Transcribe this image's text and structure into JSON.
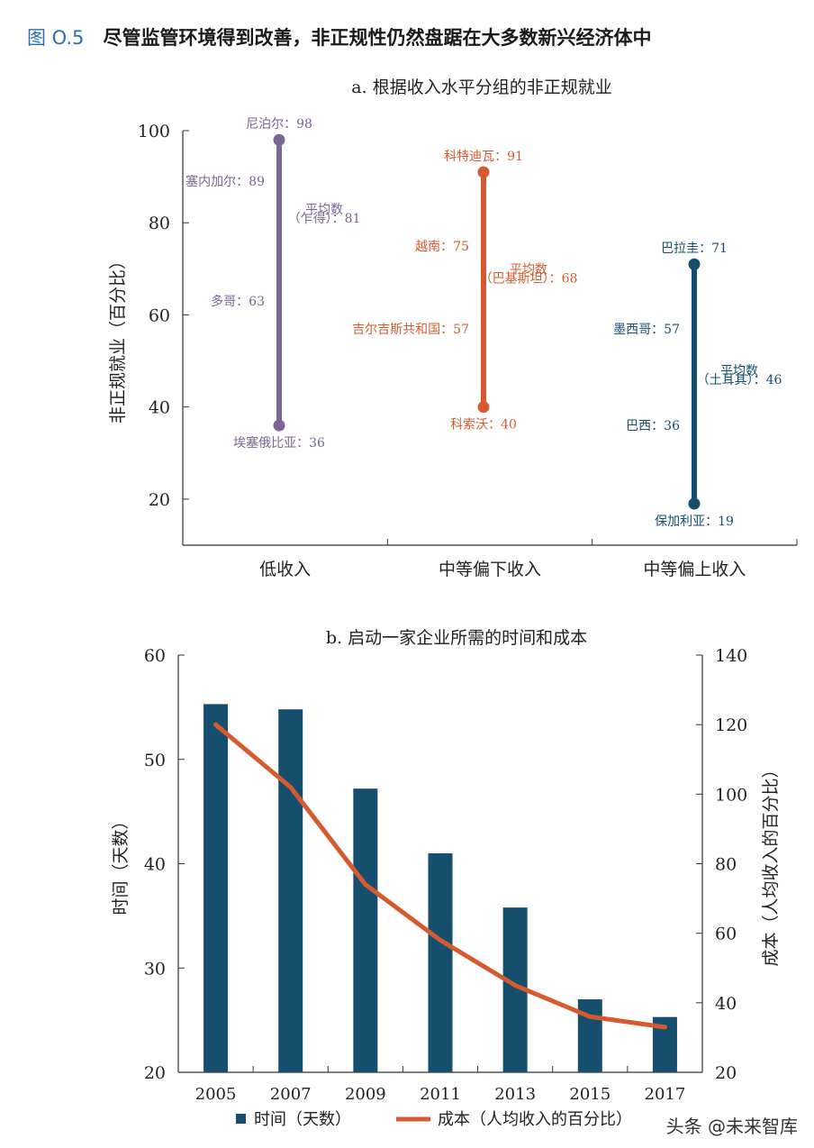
{
  "header": {
    "figure_number": "图 O.5",
    "figure_title": "尽管监管环境得到改善，非正规性仍然盘踞在大多数新兴经济体中"
  },
  "colors": {
    "purple": "#7b6595",
    "orange": "#d65a30",
    "teal": "#164f6e",
    "axis": "#333333"
  },
  "chart_data": [
    {
      "type": "range",
      "title": "a. 根据收入水平分组的非正规就业",
      "ylabel": "非正规就业（百分比）",
      "ylim": [
        10,
        100
      ],
      "yticks": [
        20,
        40,
        60,
        80,
        100
      ],
      "groups": [
        {
          "name": "低收入",
          "min": 36,
          "max": 98,
          "labels": [
            {
              "text": "尼泊尔：98",
              "value": 98,
              "side": "center-top"
            },
            {
              "text": "塞内加尔：89",
              "value": 89,
              "side": "left"
            },
            {
              "text": "平均数",
              "value": 83,
              "side": "right"
            },
            {
              "text": "（乍得）：81",
              "value": 81,
              "side": "right"
            },
            {
              "text": "多哥：63",
              "value": 63,
              "side": "left"
            },
            {
              "text": "埃塞俄比亚：36",
              "value": 36,
              "side": "center-bottom"
            }
          ]
        },
        {
          "name": "中等偏下收入",
          "min": 40,
          "max": 91,
          "labels": [
            {
              "text": "科特迪瓦：91",
              "value": 91,
              "side": "center-top"
            },
            {
              "text": "越南：75",
              "value": 75,
              "side": "left"
            },
            {
              "text": "平均数",
              "value": 70,
              "side": "right"
            },
            {
              "text": "（巴基斯坦）：68",
              "value": 68,
              "side": "right"
            },
            {
              "text": "吉尔吉斯共和国：57",
              "value": 57,
              "side": "left"
            },
            {
              "text": "科索沃：40",
              "value": 40,
              "side": "center-bottom"
            }
          ]
        },
        {
          "name": "中等偏上收入",
          "min": 19,
          "max": 71,
          "labels": [
            {
              "text": "巴拉圭：71",
              "value": 71,
              "side": "center-top"
            },
            {
              "text": "墨西哥：57",
              "value": 57,
              "side": "left"
            },
            {
              "text": "平均数",
              "value": 48,
              "side": "right"
            },
            {
              "text": "（土耳其）：46",
              "value": 46,
              "side": "right"
            },
            {
              "text": "巴西：36",
              "value": 36,
              "side": "left"
            },
            {
              "text": "保加利亚：19",
              "value": 19,
              "side": "center-bottom"
            }
          ]
        }
      ]
    },
    {
      "type": "bar-line",
      "title": "b. 启动一家企业所需的时间和成本",
      "categories": [
        "2005",
        "2007",
        "2009",
        "2011",
        "2013",
        "2015",
        "2017"
      ],
      "ylabel": "时间（天数）",
      "ylim": [
        20,
        60
      ],
      "yticks": [
        20,
        30,
        40,
        50,
        60
      ],
      "y2label": "成本（人均收入的百分比）",
      "y2lim": [
        20,
        140
      ],
      "y2ticks": [
        20,
        40,
        60,
        80,
        100,
        120,
        140
      ],
      "series": [
        {
          "name": "时间（天数）",
          "kind": "bar",
          "axis": "left",
          "values": [
            55.3,
            54.8,
            47.2,
            41.0,
            35.8,
            27.0,
            25.3
          ]
        },
        {
          "name": "成本（人均收入的百分比）",
          "kind": "line",
          "axis": "right",
          "values": [
            120,
            102,
            74,
            58,
            45,
            36,
            33
          ]
        }
      ],
      "legend_placement": "bottom"
    }
  ],
  "watermark": "头条 @未来智库"
}
